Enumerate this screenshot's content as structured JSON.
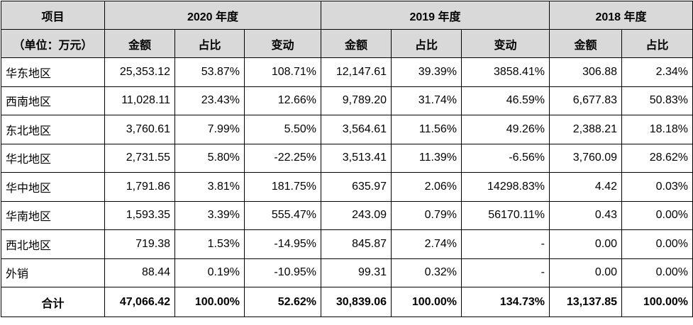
{
  "header": {
    "item_label": "项目",
    "unit_label": "（单位：万元）",
    "years": [
      "2020 年度",
      "2019 年度",
      "2018 年度"
    ],
    "amount_label": "金额",
    "share_label": "占比",
    "change_label": "变动"
  },
  "rows": [
    {
      "region": "华东地区",
      "a2020": "25,353.12",
      "s2020": "53.87%",
      "c2020": "108.71%",
      "a2019": "12,147.61",
      "s2019": "39.39%",
      "c2019": "3858.41%",
      "a2018": "306.88",
      "s2018": "2.34%"
    },
    {
      "region": "西南地区",
      "a2020": "11,028.11",
      "s2020": "23.43%",
      "c2020": "12.66%",
      "a2019": "9,789.20",
      "s2019": "31.74%",
      "c2019": "46.59%",
      "a2018": "6,677.83",
      "s2018": "50.83%"
    },
    {
      "region": "东北地区",
      "a2020": "3,760.61",
      "s2020": "7.99%",
      "c2020": "5.50%",
      "a2019": "3,564.61",
      "s2019": "11.56%",
      "c2019": "49.26%",
      "a2018": "2,388.21",
      "s2018": "18.18%"
    },
    {
      "region": "华北地区",
      "a2020": "2,731.55",
      "s2020": "5.80%",
      "c2020": "-22.25%",
      "a2019": "3,513.41",
      "s2019": "11.39%",
      "c2019": "-6.56%",
      "a2018": "3,760.09",
      "s2018": "28.62%"
    },
    {
      "region": "华中地区",
      "a2020": "1,791.86",
      "s2020": "3.81%",
      "c2020": "181.75%",
      "a2019": "635.97",
      "s2019": "2.06%",
      "c2019": "14298.83%",
      "a2018": "4.42",
      "s2018": "0.03%"
    },
    {
      "region": "华南地区",
      "a2020": "1,593.35",
      "s2020": "3.39%",
      "c2020": "555.47%",
      "a2019": "243.09",
      "s2019": "0.79%",
      "c2019": "56170.11%",
      "a2018": "0.43",
      "s2018": "0.00%"
    },
    {
      "region": "西北地区",
      "a2020": "719.38",
      "s2020": "1.53%",
      "c2020": "-14.95%",
      "a2019": "845.87",
      "s2019": "2.74%",
      "c2019": "-",
      "a2018": "0.00",
      "s2018": "0.00%"
    },
    {
      "region": "外销",
      "a2020": "88.44",
      "s2020": "0.19%",
      "c2020": "-10.95%",
      "a2019": "99.31",
      "s2019": "0.32%",
      "c2019": "-",
      "a2018": "0.00",
      "s2018": "0.00%"
    }
  ],
  "total": {
    "label": "合计",
    "a2020": "47,066.42",
    "s2020": "100.00%",
    "c2020": "52.62%",
    "a2019": "30,839.06",
    "s2019": "100.00%",
    "c2019": "134.73%",
    "a2018": "13,137.85",
    "s2018": "100.00%"
  }
}
